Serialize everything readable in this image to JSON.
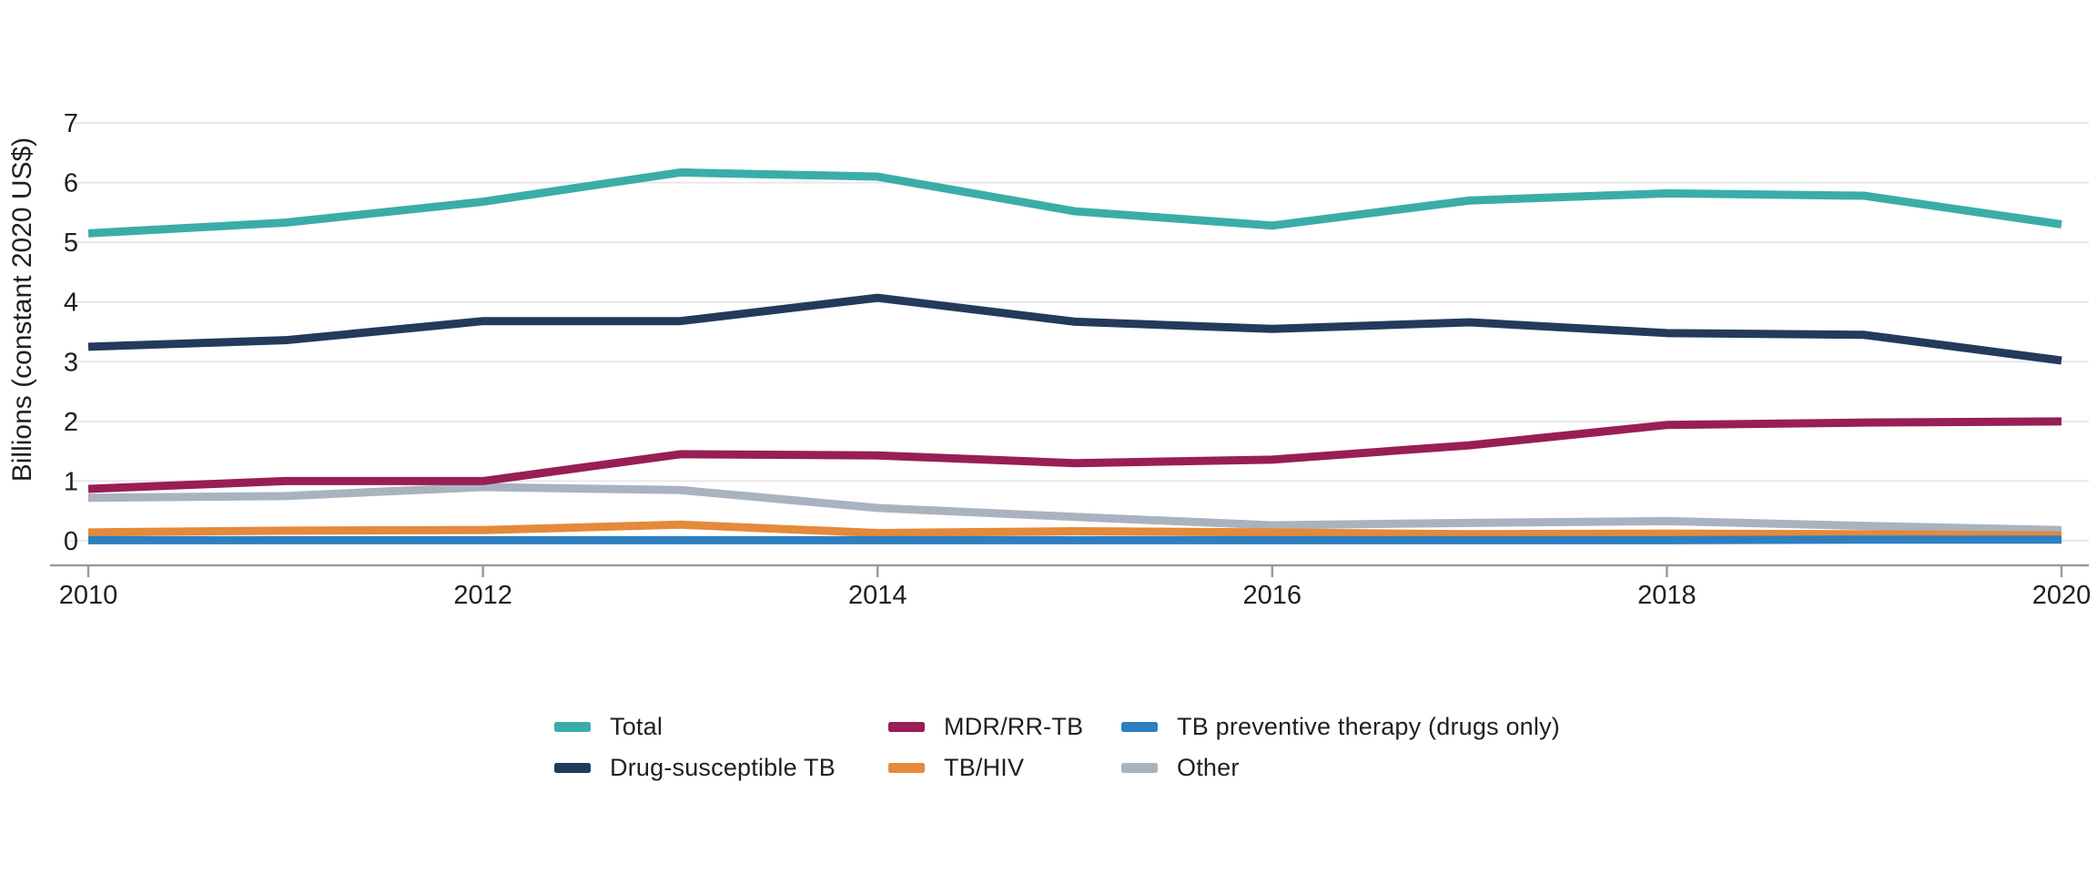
{
  "page": {
    "background": "#ffffff"
  },
  "colors": {
    "gridline": "#e8e8e8",
    "axis_line": "#9b9b9b",
    "text": "#1f1f1f"
  },
  "chart_data": {
    "type": "line",
    "title": "",
    "xlabel": "",
    "ylabel": "Billions (constant 2020 US$)",
    "x": [
      2010,
      2011,
      2012,
      2013,
      2014,
      2015,
      2016,
      2017,
      2018,
      2019,
      2020
    ],
    "xlim": [
      2010,
      2020
    ],
    "ylim": [
      0,
      7
    ],
    "y_ticks": [
      0,
      1,
      2,
      3,
      4,
      5,
      6,
      7
    ],
    "x_ticks": [
      2010,
      2012,
      2014,
      2016,
      2018,
      2020
    ],
    "x_tick_labels": [
      "2010",
      "2012",
      "2014",
      "2016",
      "2018",
      "2020"
    ],
    "grid": "horizontal",
    "legend_position": "bottom",
    "series": [
      {
        "name": "Total",
        "color": "#3aada8",
        "values": [
          5.15,
          5.33,
          5.68,
          6.17,
          6.1,
          5.52,
          5.28,
          5.7,
          5.82,
          5.78,
          5.3
        ]
      },
      {
        "name": "Drug-susceptible TB",
        "color": "#233a5c",
        "values": [
          3.25,
          3.36,
          3.68,
          3.68,
          4.07,
          3.67,
          3.55,
          3.66,
          3.48,
          3.45,
          3.02
        ]
      },
      {
        "name": "MDR/RR-TB",
        "color": "#991e55",
        "values": [
          0.87,
          1.0,
          1.0,
          1.45,
          1.43,
          1.3,
          1.36,
          1.6,
          1.94,
          1.98,
          2.0
        ]
      },
      {
        "name": "TB/HIV",
        "color": "#e5893b",
        "values": [
          0.14,
          0.17,
          0.18,
          0.27,
          0.13,
          0.16,
          0.14,
          0.11,
          0.12,
          0.11,
          0.09
        ]
      },
      {
        "name": "TB preventive therapy (drugs only)",
        "color": "#2d7fc1",
        "values": [
          0.01,
          0.01,
          0.01,
          0.01,
          0.01,
          0.01,
          0.01,
          0.01,
          0.01,
          0.02,
          0.02
        ]
      },
      {
        "name": "Other",
        "color": "#a9b3bf",
        "values": [
          0.72,
          0.75,
          0.9,
          0.85,
          0.55,
          0.4,
          0.26,
          0.3,
          0.33,
          0.25,
          0.18
        ]
      }
    ]
  },
  "legend": {
    "items": [
      {
        "label": "Total"
      },
      {
        "label": "Drug-susceptible TB"
      },
      {
        "label": "MDR/RR-TB"
      },
      {
        "label": "TB/HIV"
      },
      {
        "label": "TB preventive therapy (drugs only)"
      },
      {
        "label": "Other"
      }
    ]
  }
}
